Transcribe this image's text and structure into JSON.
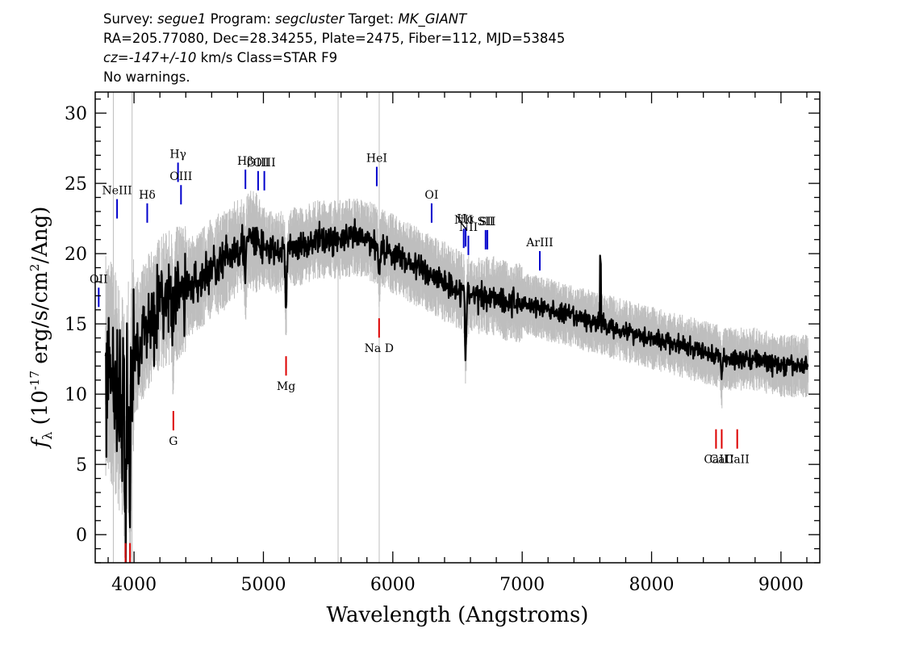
{
  "header": {
    "survey_label": "Survey:",
    "survey": "segue1",
    "program_label": "Program:",
    "program": "segcluster",
    "target_label": "Target:",
    "target": "MK_GIANT",
    "line2": "RA=205.77080, Dec=28.34255, Plate=2475, Fiber=112, MJD=53845",
    "cz_label": "cz=",
    "cz_value": "-147+/-10",
    "cz_rest": " km/s Class=STAR F9",
    "line4": "No warnings."
  },
  "colors": {
    "flux": "#000000",
    "noise": "#bebebe",
    "emission_lines": "#0000cc",
    "absorption_lines": "#dd0000"
  },
  "chart_data": {
    "type": "line",
    "title": "",
    "xlabel": "Wavelength (Angstroms)",
    "ylabel_main": "f",
    "ylabel_sub": "λ",
    "ylabel_rest": " (10",
    "ylabel_exp": "-17",
    "ylabel_unit": " erg/s/cm",
    "ylabel_unit_exp": "2",
    "ylabel_end": "/Ang)",
    "xlim": [
      3700,
      9300
    ],
    "ylim": [
      -2,
      31.5
    ],
    "xticks": [
      4000,
      5000,
      6000,
      7000,
      8000,
      9000
    ],
    "yticks": [
      0,
      5,
      10,
      15,
      20,
      25,
      30
    ],
    "x_minor_step": 200,
    "y_minor_step": 1,
    "series": [
      {
        "role": "flux",
        "x": [
          3800,
          3850,
          3900,
          3950,
          4000,
          4100,
          4200,
          4300,
          4400,
          4500,
          4600,
          4700,
          4800,
          4900,
          5000,
          5100,
          5200,
          5300,
          5400,
          5500,
          5600,
          5700,
          5800,
          5900,
          6000,
          6100,
          6200,
          6300,
          6400,
          6500,
          6600,
          6700,
          6800,
          6900,
          7000,
          7200,
          7400,
          7600,
          7800,
          8000,
          8200,
          8400,
          8600,
          8800,
          9000,
          9200
        ],
        "y": [
          12,
          11,
          9,
          10,
          13,
          15,
          16.5,
          17,
          17.5,
          18,
          19,
          19.5,
          20.5,
          21,
          20.5,
          20,
          20.5,
          20.5,
          21,
          21,
          21,
          21.2,
          21,
          20.5,
          20,
          19.5,
          19,
          18.5,
          18,
          17.5,
          17,
          17,
          17,
          16.5,
          16.5,
          16,
          15.5,
          15,
          14.5,
          14,
          13.5,
          13,
          12.5,
          12.5,
          12,
          12
        ]
      }
    ],
    "emission_lines": [
      {
        "label": "OII",
        "x": 3727,
        "y": 16.2
      },
      {
        "label": "NeIII",
        "x": 3869,
        "y": 22.5
      },
      {
        "label": "Hδ",
        "x": 4102,
        "y": 22.2
      },
      {
        "label": "Hγ",
        "x": 4340,
        "y": 25.1
      },
      {
        "label": "OIII",
        "x": 4363,
        "y": 23.5
      },
      {
        "label": "Hβ",
        "x": 4861,
        "y": 24.6
      },
      {
        "label": "OIII",
        "x": 4959,
        "y": 24.5
      },
      {
        "label": "OIII",
        "x": 5007,
        "y": 24.5
      },
      {
        "label": "HeI",
        "x": 5876,
        "y": 24.8
      },
      {
        "label": "OI",
        "x": 6300,
        "y": 22.2
      },
      {
        "label": "NII",
        "x": 6548,
        "y": 20.4
      },
      {
        "label": "Hα",
        "x": 6563,
        "y": 20.5
      },
      {
        "label": "NII",
        "x": 6584,
        "y": 19.9
      },
      {
        "label": "SII",
        "x": 6717,
        "y": 20.3
      },
      {
        "label": "SII",
        "x": 6731,
        "y": 20.3
      },
      {
        "label": "ArIII",
        "x": 7136,
        "y": 18.8
      }
    ],
    "absorption_lines": [
      {
        "label": "",
        "x": 3934,
        "y": -0.6
      },
      {
        "label": "",
        "x": 3969,
        "y": -0.6
      },
      {
        "label": "G",
        "x": 4304,
        "y": 8.8
      },
      {
        "label": "Mg",
        "x": 5175,
        "y": 12.7
      },
      {
        "label": "Na D",
        "x": 5894,
        "y": 15.4
      },
      {
        "label": "CaII",
        "x": 8498,
        "y": 7.5
      },
      {
        "label": "CaII",
        "x": 8542,
        "y": 7.5
      },
      {
        "label": "CaII",
        "x": 8662,
        "y": 7.5
      }
    ]
  }
}
